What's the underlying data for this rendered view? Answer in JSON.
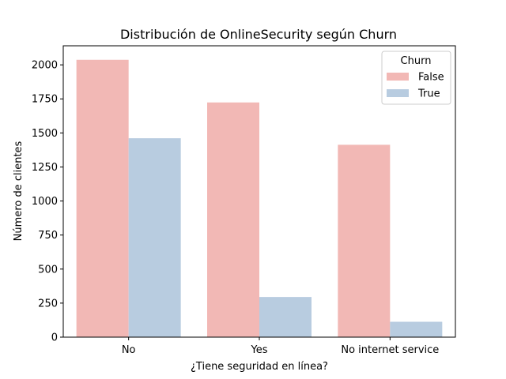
{
  "chart_data": {
    "type": "bar",
    "title": "Distribución de OnlineSecurity según Churn",
    "xlabel": "¿Tiene seguridad en línea?",
    "ylabel": "Número de clientes",
    "categories": [
      "No",
      "Yes",
      "No internet service"
    ],
    "series": [
      {
        "name": "False",
        "color": "#f2b8b5",
        "values": [
          2037,
          1724,
          1413
        ]
      },
      {
        "name": "True",
        "color": "#b8cce0",
        "values": [
          1461,
          295,
          113
        ]
      }
    ],
    "ylim": [
      0,
      2140
    ],
    "yticks": [
      0,
      250,
      500,
      750,
      1000,
      1250,
      1500,
      1750,
      2000
    ],
    "grid": false,
    "legend": {
      "title": "Churn",
      "position": "top-right"
    }
  }
}
